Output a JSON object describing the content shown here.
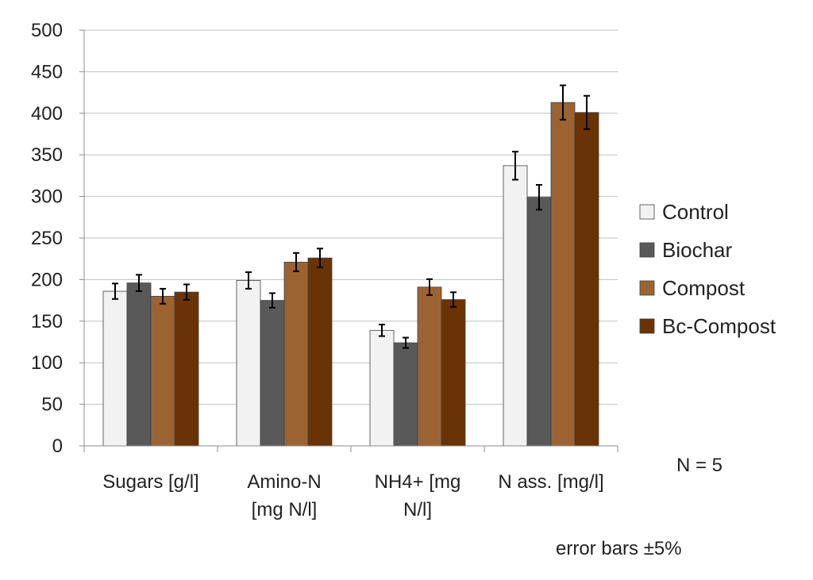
{
  "chart_data": {
    "type": "bar",
    "title": "",
    "xlabel": "",
    "ylabel": "",
    "ylim": [
      0,
      500
    ],
    "yticks": [
      0,
      50,
      100,
      150,
      200,
      250,
      300,
      350,
      400,
      450,
      500
    ],
    "grid": true,
    "legend_position": "right",
    "categories": [
      [
        "Sugars [g/l]"
      ],
      [
        "Amino-N",
        "[mg N/l]"
      ],
      [
        "NH4+ [mg",
        "N/l]"
      ],
      [
        "N ass. [mg/l]"
      ]
    ],
    "series": [
      {
        "name": "Control",
        "color": "#f2f2f2",
        "values": [
          186,
          199,
          139,
          337
        ]
      },
      {
        "name": "Biochar",
        "color": "#595959",
        "values": [
          196,
          175,
          124,
          299
        ]
      },
      {
        "name": "Compost",
        "color": "#9c6332",
        "values": [
          180,
          221,
          191,
          413
        ]
      },
      {
        "name": "Bc-Compost",
        "color": "#6a3306",
        "values": [
          185,
          226,
          176,
          401
        ]
      }
    ],
    "error_bars": "±5%"
  },
  "notes": {
    "sample_size": "N = 5",
    "error_bars": "error bars ±5%"
  }
}
